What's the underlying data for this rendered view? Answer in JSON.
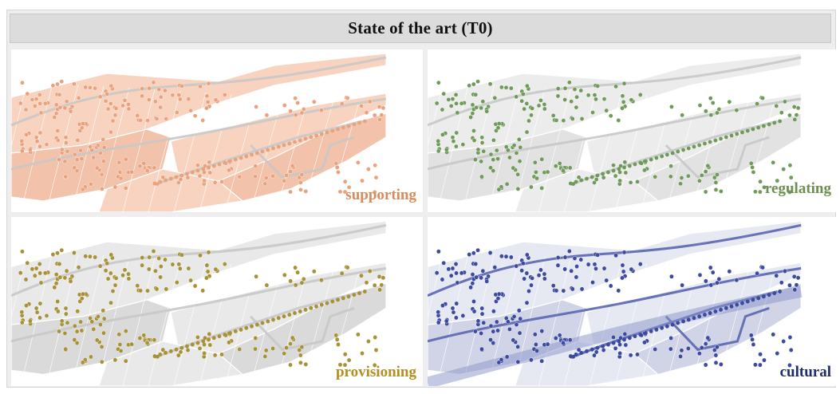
{
  "title": "State of the art (T0)",
  "panels": [
    {
      "id": "supporting",
      "label": "supporting",
      "color": "#d9895a",
      "fill": "#f7d3c0",
      "fillAlt": "#f2c2aa",
      "tree": "#e9a27c"
    },
    {
      "id": "regulating",
      "label": "regulating",
      "color": "#6b8f4e",
      "fill": "#ececec",
      "fillAlt": "#e2e2e2",
      "tree": "#6f9a59"
    },
    {
      "id": "provisioning",
      "label": "provisioning",
      "color": "#b38f1f",
      "fill": "#e9e9e9",
      "fillAlt": "#dadada",
      "tree": "#a89238"
    },
    {
      "id": "cultural",
      "label": "cultural",
      "color": "#1f2d6b",
      "fill": "#e6e8f2",
      "fillAlt": "#d0d4e6",
      "tree": "#3c4aa0"
    }
  ]
}
